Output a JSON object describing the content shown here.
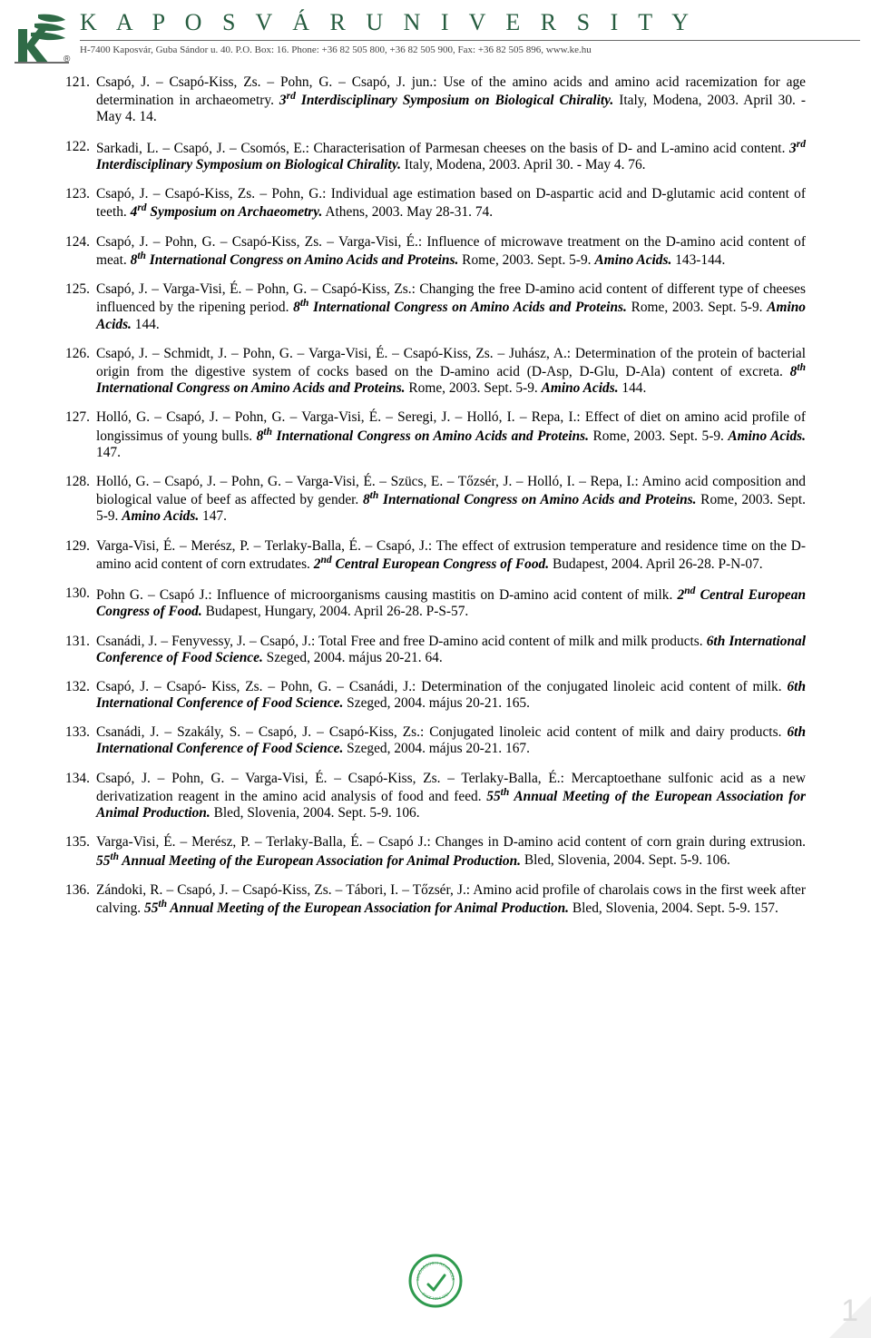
{
  "header": {
    "title": "K A P O S V Á R   U N I V E R S I T Y",
    "subline": "H-7400 Kaposvár, Guba Sándor u. 40. P.O. Box: 16. Phone: +36 82 505 800, +36 82 505 900, Fax: +36 82 505 896, www.ke.hu",
    "logo_colors": {
      "leaf": "#2f6b47",
      "k": "#2f6b47",
      "reg": "#3a3a3a"
    }
  },
  "refs": [
    {
      "n": "121.",
      "html": "Csapó, J. – Csapó-Kiss, Zs. – Pohn, G. – Csapó, J. jun.: Use of the amino acids and amino acid racemization for age determination in archaeometry. <i><b>3<sup>rd</sup> Interdisciplinary Symposium on Biological Chirality.</b></i> Italy, Modena, 2003. April 30. - May 4. 14."
    },
    {
      "n": "122.",
      "html": "Sarkadi, L. – Csapó, J. – Csomós, E.: Characterisation of Parmesan cheeses on the basis of D- and L-amino acid content. <i><b>3<sup>rd</sup> Interdisciplinary Symposium on Biological Chirality.</b></i> Italy, Modena, 2003. April 30. - May 4. 76."
    },
    {
      "n": "123.",
      "html": "Csapó, J. – Csapó-Kiss, Zs. – Pohn, G.: Individual age estimation based on D-aspartic acid and D-glutamic acid content of teeth. <i><b>4<sup>rd</sup> Symposium on Archaeometry.</b></i> Athens, 2003. May 28-31. 74."
    },
    {
      "n": "124.",
      "html": "Csapó, J. – Pohn, G. – Csapó-Kiss, Zs. – Varga-Visi, É.: Influence of microwave treatment on the D-amino acid content of meat. <i><b>8<sup>th</sup> International Congress on Amino Acids and Proteins.</b></i> Rome, 2003. Sept. 5-9. <i><b>Amino Acids.</b></i> 143-144."
    },
    {
      "n": "125.",
      "html": "Csapó, J. – Varga-Visi, É. – Pohn, G. – Csapó-Kiss, Zs.: Changing the free D-amino acid content of different type of cheeses influenced by the ripening period. <i><b>8<sup>th</sup> International Congress on Amino Acids and Proteins.</b></i> Rome, 2003. Sept. 5-9. <i><b>Amino Acids.</b></i> 144."
    },
    {
      "n": "126.",
      "html": "Csapó, J. – Schmidt, J. – Pohn, G. – Varga-Visi, É. – Csapó-Kiss, Zs. – Juhász, A.: Determination of the protein of bacterial origin from the digestive system of cocks based on the D-amino acid (D-Asp, D-Glu, D-Ala) content of excreta. <i><b>8<sup>th</sup> International Congress on Amino Acids and Proteins.</b></i> Rome, 2003. Sept. 5-9. <i><b>Amino Acids.</b></i> 144."
    },
    {
      "n": "127.",
      "html": "Holló, G. – Csapó, J. – Pohn, G. – Varga-Visi, É. – Seregi, J. – Holló, I. – Repa, I.: Effect of diet on amino acid profile of longissimus of young bulls. <i><b>8<sup>th</sup> International Congress on Amino Acids and Proteins.</b></i> Rome, 2003. Sept. 5-9. <i><b>Amino Acids.</b></i> 147."
    },
    {
      "n": "128.",
      "html": "Holló, G. – Csapó, J. – Pohn, G. – Varga-Visi, É. – Szücs, E. – Tőzsér, J. – Holló, I. – Repa, I.: Amino acid composition and biological value of beef as affected by gender. <i><b>8<sup>th</sup> International Congress on Amino Acids and Proteins.</b></i> Rome, 2003. Sept. 5-9. <i><b>Amino Acids.</b></i> 147."
    },
    {
      "n": "129.",
      "html": "Varga-Visi, É. – Merész, P. – Terlaky-Balla, É. – Csapó, J.: The effect of extrusion temperature and residence time on the D-amino acid content of corn extrudates. <i><b>2<sup>nd</sup> Central European Congress of Food.</b></i> Budapest, 2004. April 26-28. P-N-07."
    },
    {
      "n": "130.",
      "html": "Pohn G. – Csapó J.: Influence of microorganisms causing mastitis on D-amino acid content of milk. <i><b>2<sup>nd</sup> Central European Congress of Food.</b></i> Budapest, Hungary, 2004. April 26-28. P-S-57."
    },
    {
      "n": "131.",
      "html": "Csanádi, J. – Fenyvessy, J. – Csapó, J.: Total Free and free D-amino acid content of milk and milk products. <i><b>6th International Conference of Food Science.</b></i> Szeged, 2004. május 20-21. 64."
    },
    {
      "n": "132.",
      "html": "Csapó, J. – Csapó- Kiss, Zs. – Pohn, G. – Csanádi, J.: Determination of the conjugated linoleic acid content of milk. <i><b>6th International Conference of Food Science.</b></i> Szeged, 2004. május 20-21. 165."
    },
    {
      "n": "133.",
      "html": "Csanádi, J. – Szakály, S. – Csapó, J. – Csapó-Kiss, Zs.: Conjugated linoleic acid content of milk and dairy products. <i><b>6th International Conference of Food Science.</b></i> Szeged, 2004. május 20-21. 167."
    },
    {
      "n": "134.",
      "html": "Csapó, J. – Pohn, G. – Varga-Visi, É. – Csapó-Kiss, Zs. – Terlaky-Balla, É.: Mercaptoethane sulfonic acid as a new derivatization reagent in the amino acid analysis of food and feed. <i><b>55<sup>th</sup> Annual Meeting of the European Association for Animal Production.</b></i> Bled, Slovenia, 2004. Sept. 5-9. 106."
    },
    {
      "n": "135.",
      "html": "Varga-Visi, É. – Merész, P. – Terlaky-Balla, É. – Csapó J.: Changes in D-amino acid content of corn grain during extrusion. <i><b>55<sup>th</sup> Annual Meeting of the European Association for Animal Production.</b></i> Bled, Slovenia, 2004. Sept. 5-9. 106."
    },
    {
      "n": "136.",
      "html": "Zándoki, R. – Csapó, J. – Csapó-Kiss, Zs. – Tábori, I. – Tőzsér, J.: Amino acid profile of charolais cows in the first week after calving. <i><b>55<sup>th</sup> Annual Meeting of the European Association for Animal Production.</b></i> Bled, Slovenia, 2004. Sept. 5-9. 157."
    }
  ],
  "seal": {
    "ring_color": "#2f9a4e",
    "accent_color": "#2f9a4e",
    "inner_text_top": "MINŐSÉGÜGYI RENDSZER",
    "inner_text_bottom": "ISO 9001:2000"
  },
  "page_number": "1"
}
